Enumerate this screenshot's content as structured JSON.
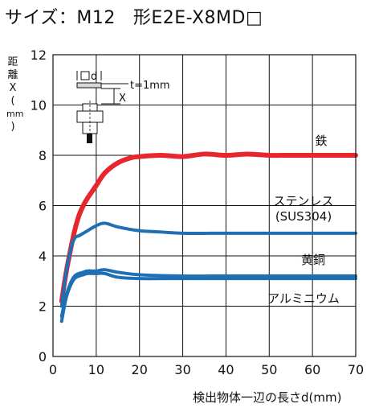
{
  "header": {
    "title": "サイズ：M12",
    "model": "形E2E-X8MD□"
  },
  "chart_data": {
    "type": "line",
    "ylabel": "距離X(mm)",
    "ylabel_chars": [
      "距",
      "離",
      "X",
      "(",
      "mm",
      ")"
    ],
    "xlabel": "検出物体一辺の長さd(mm)",
    "xlim": [
      0,
      70
    ],
    "ylim": [
      0,
      12
    ],
    "xticks": [
      "0",
      "10",
      "20",
      "30",
      "40",
      "50",
      "60",
      "70"
    ],
    "yticks": [
      "0",
      "2",
      "4",
      "6",
      "8",
      "10",
      "12"
    ],
    "grid": true,
    "inset_labels": {
      "d": "d",
      "x": "X",
      "t": "t=1mm"
    },
    "series": [
      {
        "name": "鉄",
        "label_lines": [
          "鉄"
        ],
        "color": "#e8262d",
        "width": 6,
        "x": [
          2,
          3,
          4,
          5,
          6,
          7,
          8,
          10,
          12,
          15,
          18,
          20,
          25,
          30,
          35,
          40,
          45,
          50,
          55,
          60,
          65,
          70
        ],
        "y": [
          2.2,
          3.3,
          4.2,
          5.0,
          5.6,
          6.0,
          6.3,
          6.8,
          7.3,
          7.7,
          7.9,
          7.95,
          8.0,
          7.95,
          8.05,
          8.0,
          8.05,
          8.0,
          8.0,
          8.0,
          8.0,
          8.0
        ]
      },
      {
        "name": "ステンレス(SUS304)",
        "label_lines": [
          "ステンレス",
          "(SUS304)"
        ],
        "color": "#1f6fb5",
        "width": 4,
        "x": [
          2,
          3,
          4,
          5,
          6,
          7,
          8,
          10,
          12,
          15,
          20,
          25,
          30,
          40,
          50,
          60,
          70
        ],
        "y": [
          2.0,
          3.3,
          4.2,
          4.7,
          4.8,
          4.9,
          5.0,
          5.2,
          5.3,
          5.15,
          5.0,
          4.95,
          4.9,
          4.9,
          4.9,
          4.9,
          4.9
        ]
      },
      {
        "name": "黄銅",
        "label_lines": [
          "黄銅"
        ],
        "color": "#1f6fb5",
        "width": 4,
        "x": [
          2,
          3,
          4,
          5,
          6,
          7,
          8,
          10,
          12,
          15,
          20,
          30,
          40,
          50,
          60,
          70
        ],
        "y": [
          1.6,
          2.4,
          2.9,
          3.2,
          3.3,
          3.35,
          3.4,
          3.4,
          3.45,
          3.35,
          3.25,
          3.2,
          3.2,
          3.2,
          3.2,
          3.2
        ]
      },
      {
        "name": "アルミニウム",
        "label_lines": [
          "アルミニウム"
        ],
        "color": "#1f6fb5",
        "width": 4,
        "x": [
          2,
          3,
          4,
          5,
          6,
          7,
          8,
          10,
          12,
          15,
          20,
          30,
          40,
          50,
          60,
          70
        ],
        "y": [
          1.4,
          2.3,
          2.8,
          3.1,
          3.2,
          3.25,
          3.3,
          3.3,
          3.3,
          3.15,
          3.1,
          3.1,
          3.1,
          3.1,
          3.1,
          3.1
        ]
      }
    ]
  }
}
